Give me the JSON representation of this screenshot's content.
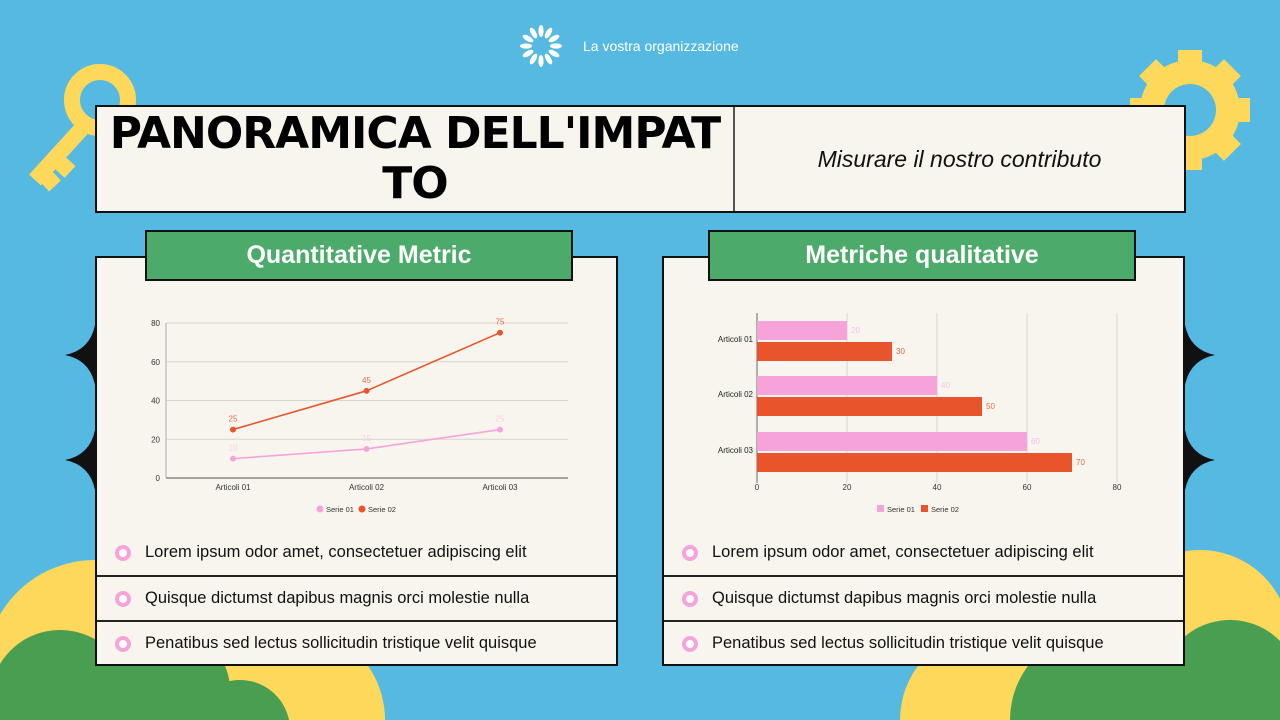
{
  "header": {
    "org_name": "La vostra organizzazione",
    "title": "PANORAMICA DELL'IMPATTO",
    "subtitle": "Misurare il nostro contributo"
  },
  "colors": {
    "background": "#56b9e1",
    "card": "#f8f5ee",
    "tab": "#4caa6a",
    "serie01": "#f6a3d9",
    "serie02": "#e8552c",
    "decor_yellow": "#fdd85a",
    "decor_green": "#4a9e52"
  },
  "left": {
    "tab": "Quantitative Metric",
    "items": [
      "Lorem ipsum odor amet, consectetuer adipiscing elit",
      "Quisque dictumst dapibus magnis orci molestie nulla",
      "Penatibus sed lectus sollicitudin tristique velit quisque"
    ]
  },
  "right": {
    "tab": "Metriche qualitative",
    "items": [
      "Lorem ipsum odor amet, consectetuer adipiscing elit",
      "Quisque dictumst dapibus magnis orci molestie nulla",
      "Penatibus sed lectus sollicitudin tristique velit quisque"
    ]
  },
  "chart_data": [
    {
      "type": "line",
      "categories": [
        "Articoli 01",
        "Articoli 02",
        "Articoli 03"
      ],
      "series": [
        {
          "name": "Serie 01",
          "values": [
            10,
            15,
            25
          ]
        },
        {
          "name": "Serie 02",
          "values": [
            25,
            45,
            75
          ]
        }
      ],
      "ylim": [
        0,
        80
      ],
      "yticks": [
        0,
        20,
        40,
        60,
        80
      ],
      "grid": true,
      "legend": "bottom"
    },
    {
      "type": "bar",
      "orientation": "horizontal",
      "categories": [
        "Articoli 01",
        "Articoli 02",
        "Articoli 03"
      ],
      "series": [
        {
          "name": "Serie 01",
          "values": [
            20,
            40,
            60
          ]
        },
        {
          "name": "Serie 02",
          "values": [
            30,
            50,
            70
          ]
        }
      ],
      "xlim": [
        0,
        80
      ],
      "xticks": [
        0,
        20,
        40,
        60,
        80
      ],
      "grid": true,
      "legend": "bottom"
    }
  ]
}
